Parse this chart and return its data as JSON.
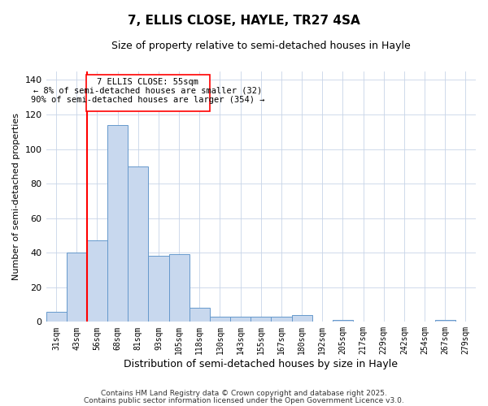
{
  "title1": "7, ELLIS CLOSE, HAYLE, TR27 4SA",
  "title2": "Size of property relative to semi-detached houses in Hayle",
  "xlabel": "Distribution of semi-detached houses by size in Hayle",
  "ylabel": "Number of semi-detached properties",
  "bin_labels": [
    "31sqm",
    "43sqm",
    "56sqm",
    "68sqm",
    "81sqm",
    "93sqm",
    "105sqm",
    "118sqm",
    "130sqm",
    "143sqm",
    "155sqm",
    "167sqm",
    "180sqm",
    "192sqm",
    "205sqm",
    "217sqm",
    "229sqm",
    "242sqm",
    "254sqm",
    "267sqm",
    "279sqm"
  ],
  "bar_heights": [
    6,
    40,
    47,
    114,
    90,
    38,
    39,
    8,
    3,
    3,
    3,
    3,
    4,
    0,
    1,
    0,
    0,
    0,
    0,
    1,
    0
  ],
  "bar_color": "#c8d8ee",
  "bar_edge_color": "#6699cc",
  "red_line_bin": 2,
  "annotation_title": "7 ELLIS CLOSE: 55sqm",
  "annotation_line1": "← 8% of semi-detached houses are smaller (32)",
  "annotation_line2": "90% of semi-detached houses are larger (354) →",
  "ylim": [
    0,
    145
  ],
  "yticks": [
    0,
    20,
    40,
    60,
    80,
    100,
    120,
    140
  ],
  "footer1": "Contains HM Land Registry data © Crown copyright and database right 2025.",
  "footer2": "Contains public sector information licensed under the Open Government Licence v3.0."
}
